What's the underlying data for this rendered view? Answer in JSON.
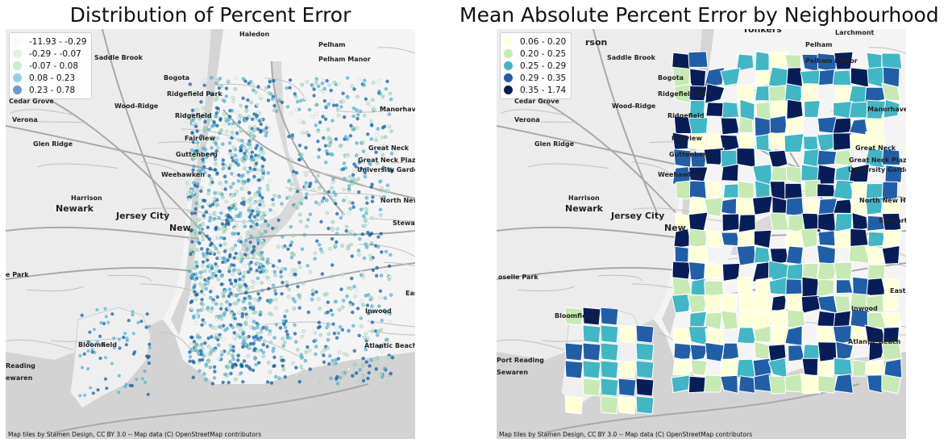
{
  "left": {
    "title": "Distribution of Percent Error",
    "attribution": "Map tiles by Stamen Design, CC BY 3.0 -- Map data (C) OpenStreetMap contributors",
    "legend": [
      {
        "label": "-11.93 - -0.29",
        "color": "#f7fcf0"
      },
      {
        "label": "-0.29 - -0.07",
        "color": "#ccebc5"
      },
      {
        "label": "-0.07 - 0.08",
        "color": "#a8ddb5"
      },
      {
        "label": "0.08 - 0.23",
        "color": "#4eb3d3"
      },
      {
        "label": "0.23 - 0.78",
        "color": "#08589e"
      }
    ],
    "places": [
      {
        "name": "Haledon",
        "big": false
      },
      {
        "name": "Saddle Brook",
        "big": false
      },
      {
        "name": "Bogota",
        "big": false
      },
      {
        "name": "Ridgefield Park",
        "big": false
      },
      {
        "name": "Ridgefield",
        "big": false
      },
      {
        "name": "Cedar Grove",
        "big": false
      },
      {
        "name": "Wood-Ridge",
        "big": false
      },
      {
        "name": "Verona",
        "big": false
      },
      {
        "name": "Fairview",
        "big": false
      },
      {
        "name": "Glen Ridge",
        "big": false
      },
      {
        "name": "Guttenberg",
        "big": false
      },
      {
        "name": "Weehawken",
        "big": false
      },
      {
        "name": "Harrison",
        "big": false
      },
      {
        "name": "Newark",
        "big": true
      },
      {
        "name": "Jersey City",
        "big": true
      },
      {
        "name": "New",
        "big": true
      },
      {
        "name": "Pelham",
        "big": false
      },
      {
        "name": "Pelham Manor",
        "big": false
      },
      {
        "name": "Manorhaven",
        "big": false
      },
      {
        "name": "Great Neck",
        "big": false
      },
      {
        "name": "Great Neck Plaza",
        "big": false
      },
      {
        "name": "University Gardens",
        "big": false
      },
      {
        "name": "North New H",
        "big": false
      },
      {
        "name": "Stewart",
        "big": false
      },
      {
        "name": "East",
        "big": false
      },
      {
        "name": "Inwood",
        "big": false
      },
      {
        "name": "Atlantic Beach",
        "big": false
      },
      {
        "name": "Bloomfield",
        "big": false
      },
      {
        "name": "e Park",
        "big": false
      },
      {
        "name": "Reading",
        "big": false
      },
      {
        "name": "ewaren",
        "big": false
      }
    ]
  },
  "right": {
    "title": "Mean Absolute Percent Error by Neighbourhood",
    "attribution": "Map tiles by Stamen Design, CC BY 3.0 -- Map data (C) OpenStreetMap contributors",
    "legend": [
      {
        "label": "0.06 - 0.20",
        "color": "#ffffd9"
      },
      {
        "label": "0.20 - 0.25",
        "color": "#c7e9b4"
      },
      {
        "label": "0.25 - 0.29",
        "color": "#41b6c4"
      },
      {
        "label": "0.29 - 0.35",
        "color": "#225ea8"
      },
      {
        "label": "0.35 - 1.74",
        "color": "#081d58"
      }
    ],
    "places": [
      {
        "name": "Yonkers",
        "big": true
      },
      {
        "name": "rson",
        "big": true
      },
      {
        "name": "Larchmont",
        "big": false
      },
      {
        "name": "Pelham",
        "big": false
      },
      {
        "name": "Pelham Manor",
        "big": false
      },
      {
        "name": "Saddle Brook",
        "big": false
      },
      {
        "name": "Bogota",
        "big": false
      },
      {
        "name": "Ridgefield Park",
        "big": false
      },
      {
        "name": "Ridgefield",
        "big": false
      },
      {
        "name": "Cedar Grove",
        "big": false
      },
      {
        "name": "Wood-Ridge",
        "big": false
      },
      {
        "name": "Verona",
        "big": false
      },
      {
        "name": "Fairview",
        "big": false
      },
      {
        "name": "Glen Ridge",
        "big": false
      },
      {
        "name": "Guttenberg",
        "big": false
      },
      {
        "name": "Weehawken",
        "big": false
      },
      {
        "name": "Harrison",
        "big": false
      },
      {
        "name": "Newark",
        "big": true
      },
      {
        "name": "Jersey City",
        "big": true
      },
      {
        "name": "New",
        "big": true
      },
      {
        "name": "Manorhaven",
        "big": false
      },
      {
        "name": "Great Neck",
        "big": false
      },
      {
        "name": "Great Neck Plaza",
        "big": false
      },
      {
        "name": "University Gardens",
        "big": false
      },
      {
        "name": "North New Hy",
        "big": false
      },
      {
        "name": "Stewart Ma",
        "big": false
      },
      {
        "name": "East",
        "big": false
      },
      {
        "name": "Inwood",
        "big": false
      },
      {
        "name": "Atlantic Beach",
        "big": false
      },
      {
        "name": "Bloomfield",
        "big": false
      },
      {
        "name": "oselle Park",
        "big": false
      },
      {
        "name": "Port Reading",
        "big": false
      },
      {
        "name": "Sewaren",
        "big": false
      }
    ]
  }
}
